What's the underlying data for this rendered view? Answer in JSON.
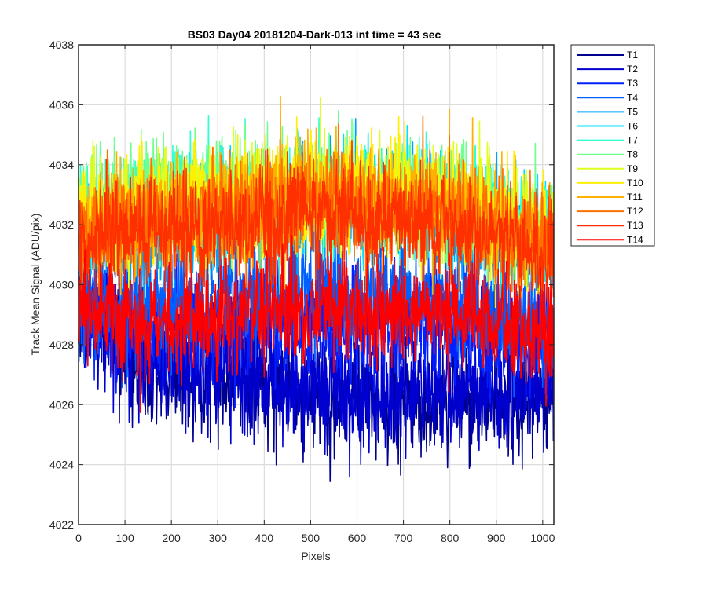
{
  "chart_data": {
    "type": "line",
    "title": "BS03 Day04 20181204-Dark-013 int time = 43 sec",
    "xlabel": "Pixels",
    "ylabel": "Track Mean Signal (ADU/pix)",
    "xlim": [
      0,
      1024
    ],
    "ylim": [
      4022,
      4038
    ],
    "xticks": [
      0,
      100,
      200,
      300,
      400,
      500,
      600,
      700,
      800,
      900,
      1000
    ],
    "yticks": [
      4022,
      4024,
      4026,
      4028,
      4030,
      4032,
      4034,
      4036,
      4038
    ],
    "grid": true,
    "legend_position": "outside-top-right",
    "x_step": 1,
    "series": [
      {
        "name": "T1",
        "color": "#00008F",
        "profile": [
          [
            0,
            4029.5
          ],
          [
            150,
            4027.3
          ],
          [
            500,
            4026.2
          ],
          [
            750,
            4026.0
          ],
          [
            1023,
            4026.4
          ]
        ],
        "noise_sd": 1.0
      },
      {
        "name": "T2",
        "color": "#0000D0",
        "profile": [
          [
            0,
            4029.0
          ],
          [
            150,
            4027.5
          ],
          [
            500,
            4026.6
          ],
          [
            750,
            4026.4
          ],
          [
            1023,
            4026.6
          ]
        ],
        "noise_sd": 1.0
      },
      {
        "name": "T3",
        "color": "#0020FF",
        "profile": [
          [
            0,
            4029.3
          ],
          [
            150,
            4028.3
          ],
          [
            500,
            4028.8
          ],
          [
            750,
            4028.6
          ],
          [
            1023,
            4028.0
          ]
        ],
        "noise_sd": 0.9
      },
      {
        "name": "T4",
        "color": "#0060FF",
        "profile": [
          [
            0,
            4029.6
          ],
          [
            150,
            4029.2
          ],
          [
            500,
            4029.8
          ],
          [
            750,
            4029.6
          ],
          [
            1023,
            4028.6
          ]
        ],
        "noise_sd": 0.9
      },
      {
        "name": "T5",
        "color": "#00A0FF",
        "profile": [
          [
            0,
            4031.5
          ],
          [
            150,
            4031.5
          ],
          [
            500,
            4032.6
          ],
          [
            750,
            4032.4
          ],
          [
            1023,
            4031.0
          ]
        ],
        "noise_sd": 0.9
      },
      {
        "name": "T6",
        "color": "#00E0FF",
        "profile": [
          [
            0,
            4032.0
          ],
          [
            150,
            4032.2
          ],
          [
            500,
            4032.8
          ],
          [
            750,
            4032.6
          ],
          [
            1023,
            4031.4
          ]
        ],
        "noise_sd": 0.9
      },
      {
        "name": "T7",
        "color": "#30FFCF",
        "profile": [
          [
            0,
            4032.2
          ],
          [
            150,
            4032.8
          ],
          [
            500,
            4033.0
          ],
          [
            750,
            4032.8
          ],
          [
            1023,
            4031.6
          ]
        ],
        "noise_sd": 0.9
      },
      {
        "name": "T8",
        "color": "#70FF8F",
        "profile": [
          [
            0,
            4032.3
          ],
          [
            150,
            4033.3
          ],
          [
            500,
            4033.1
          ],
          [
            750,
            4032.9
          ],
          [
            1023,
            4031.8
          ]
        ],
        "noise_sd": 0.9
      },
      {
        "name": "T9",
        "color": "#DFFF20",
        "profile": [
          [
            0,
            4032.1
          ],
          [
            150,
            4032.6
          ],
          [
            500,
            4033.2
          ],
          [
            750,
            4033.0
          ],
          [
            1023,
            4031.8
          ]
        ],
        "noise_sd": 0.9
      },
      {
        "name": "T10",
        "color": "#FFEF00",
        "profile": [
          [
            0,
            4032.0
          ],
          [
            150,
            4032.4
          ],
          [
            500,
            4033.1
          ],
          [
            750,
            4032.9
          ],
          [
            1023,
            4031.6
          ]
        ],
        "noise_sd": 0.9
      },
      {
        "name": "T11",
        "color": "#FFB000",
        "profile": [
          [
            0,
            4031.8
          ],
          [
            150,
            4032.2
          ],
          [
            500,
            4033.0
          ],
          [
            750,
            4032.8
          ],
          [
            1023,
            4031.4
          ]
        ],
        "noise_sd": 0.9
      },
      {
        "name": "T12",
        "color": "#FF7000",
        "profile": [
          [
            0,
            4031.6
          ],
          [
            150,
            4032.0
          ],
          [
            500,
            4032.7
          ],
          [
            750,
            4032.5
          ],
          [
            1023,
            4031.2
          ]
        ],
        "noise_sd": 0.9
      },
      {
        "name": "T13",
        "color": "#FF3000",
        "profile": [
          [
            0,
            4031.4
          ],
          [
            150,
            4031.7
          ],
          [
            500,
            4032.4
          ],
          [
            750,
            4032.2
          ],
          [
            1023,
            4030.9
          ]
        ],
        "noise_sd": 0.9
      },
      {
        "name": "T14",
        "color": "#FF0000",
        "profile": [
          [
            0,
            4029.3
          ],
          [
            150,
            4028.6
          ],
          [
            500,
            4029.2
          ],
          [
            750,
            4029.0
          ],
          [
            1023,
            4028.4
          ]
        ],
        "noise_sd": 0.9
      }
    ]
  }
}
